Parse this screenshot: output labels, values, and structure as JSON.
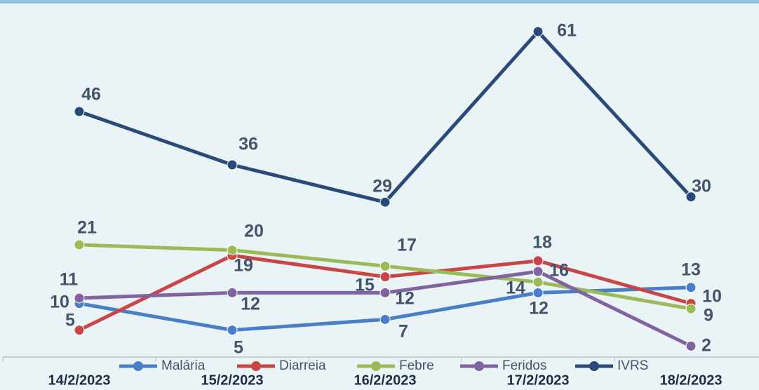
{
  "chart_data": {
    "type": "line",
    "categories": [
      "14/2/2023",
      "15/2/2023",
      "16/2/2023",
      "17/2/2023",
      "18/2/2023"
    ],
    "series": [
      {
        "name": "Malária",
        "color": "#4a7fc8",
        "values": [
          10,
          5,
          7,
          12,
          13
        ]
      },
      {
        "name": "Diarreia",
        "color": "#c84646",
        "values": [
          5,
          19,
          15,
          18,
          10
        ]
      },
      {
        "name": "Febre",
        "color": "#9bbb59",
        "values": [
          21,
          20,
          17,
          14,
          9
        ]
      },
      {
        "name": "Feridos",
        "color": "#8064a2",
        "values": [
          11,
          12,
          12,
          16,
          2
        ]
      },
      {
        "name": "IVRS",
        "color": "#2a4a7a",
        "values": [
          46,
          36,
          29,
          61,
          30
        ]
      }
    ],
    "ylim": [
      0,
      65
    ],
    "legend": "bottom"
  }
}
